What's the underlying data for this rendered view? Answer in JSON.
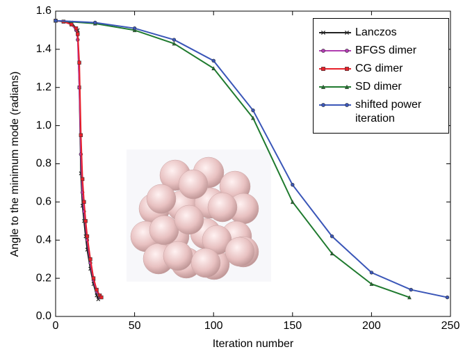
{
  "chart_data": {
    "type": "line",
    "xlabel": "Iteration number",
    "ylabel": "Angle to the minimum mode (radians)",
    "xlim": [
      0,
      250
    ],
    "ylim": [
      0,
      1.6
    ],
    "xticks": [
      0,
      50,
      100,
      150,
      200,
      250
    ],
    "yticks": [
      {
        "value": 0,
        "label": "0.0"
      },
      0.2,
      0.4,
      0.6,
      0.8,
      {
        "value": 1,
        "label": "1.0"
      },
      1.2,
      1.4,
      1.6
    ],
    "legend": "upper right",
    "series": [
      {
        "name": "Lanczos",
        "color": "#222222",
        "marker": "x",
        "x": [
          0,
          5,
          10,
          14,
          15,
          16,
          17,
          18,
          19,
          20,
          22,
          24,
          26,
          27
        ],
        "values": [
          1.55,
          1.545,
          1.54,
          1.5,
          1.2,
          0.75,
          0.58,
          0.5,
          0.42,
          0.35,
          0.25,
          0.17,
          0.11,
          0.09
        ]
      },
      {
        "name": "BFGS dimer",
        "color": "#b03cb0",
        "marker": "circle",
        "x": [
          0,
          5,
          10,
          13,
          14,
          15,
          16,
          17,
          18,
          20,
          22,
          24,
          26,
          28
        ],
        "values": [
          1.55,
          1.545,
          1.53,
          1.5,
          1.45,
          1.2,
          0.85,
          0.65,
          0.55,
          0.4,
          0.28,
          0.19,
          0.13,
          0.1
        ]
      },
      {
        "name": "CG dimer",
        "color": "#e8202a",
        "marker": "square",
        "x": [
          0,
          5,
          10,
          13,
          14,
          15,
          16,
          17,
          18,
          19,
          20,
          22,
          24,
          26,
          28,
          29
        ],
        "values": [
          1.55,
          1.545,
          1.53,
          1.51,
          1.48,
          1.33,
          0.95,
          0.72,
          0.6,
          0.5,
          0.42,
          0.3,
          0.2,
          0.14,
          0.11,
          0.1
        ]
      },
      {
        "name": "SD dimer",
        "color": "#1f7a2e",
        "marker": "triangle",
        "x": [
          0,
          25,
          50,
          75,
          100,
          125,
          150,
          175,
          200,
          224
        ],
        "values": [
          1.55,
          1.535,
          1.5,
          1.43,
          1.3,
          1.04,
          0.6,
          0.33,
          0.17,
          0.1
        ]
      },
      {
        "name": "shifted power iteration",
        "color": "#3a56b8",
        "marker": "circle",
        "x": [
          0,
          25,
          50,
          75,
          100,
          125,
          150,
          175,
          200,
          225,
          248
        ],
        "values": [
          1.55,
          1.54,
          1.51,
          1.45,
          1.34,
          1.08,
          0.69,
          0.42,
          0.23,
          0.14,
          0.1
        ]
      }
    ]
  }
}
